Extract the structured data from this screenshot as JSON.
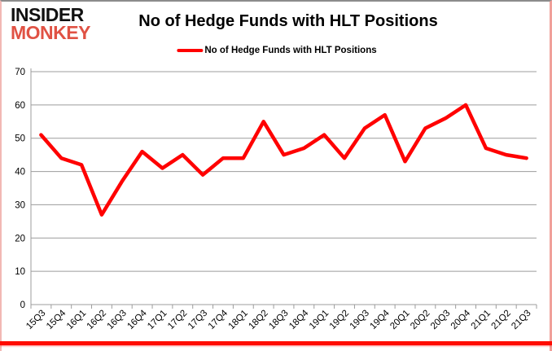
{
  "logo": {
    "line1": "INSIDER",
    "line2": "MONKEY"
  },
  "header": {
    "title": "No of Hedge Funds with HLT Positions"
  },
  "legend": {
    "label": "No of Hedge Funds with HLT Positions"
  },
  "colors": {
    "logo_insider": "#111111",
    "logo_monkey": "#e05244",
    "series_red": "#ff0000",
    "gridline_gray": "#9c9c9c",
    "frame_bottom_red": "#ff0b00"
  },
  "chart_data": {
    "type": "line",
    "title": "No of Hedge Funds with HLT Positions",
    "legend_entries": [
      "No of Hedge Funds with HLT Positions"
    ],
    "legend_position": "top",
    "categories": [
      "15Q3",
      "15Q4",
      "16Q1",
      "16Q2",
      "16Q3",
      "16Q4",
      "17Q1",
      "17Q2",
      "17Q3",
      "17Q4",
      "18Q1",
      "18Q2",
      "18Q3",
      "18Q4",
      "19Q1",
      "19Q2",
      "19Q3",
      "19Q4",
      "20Q1",
      "20Q2",
      "20Q3",
      "20Q4",
      "21Q1",
      "21Q2",
      "21Q3"
    ],
    "values": [
      51,
      44,
      42,
      27,
      37,
      46,
      41,
      45,
      39,
      44,
      44,
      55,
      45,
      47,
      51,
      44,
      53,
      57,
      43,
      53,
      56,
      60,
      47,
      45,
      44
    ],
    "xlabel": "",
    "ylabel": "",
    "ylim": [
      0,
      70
    ],
    "ytick_step": 10,
    "yticks": [
      0,
      10,
      20,
      30,
      40,
      50,
      60,
      70
    ],
    "grid": true,
    "line_color": "#ff0000",
    "gridline_color": "#9c9c9c",
    "axis_text_color": "#000000"
  }
}
